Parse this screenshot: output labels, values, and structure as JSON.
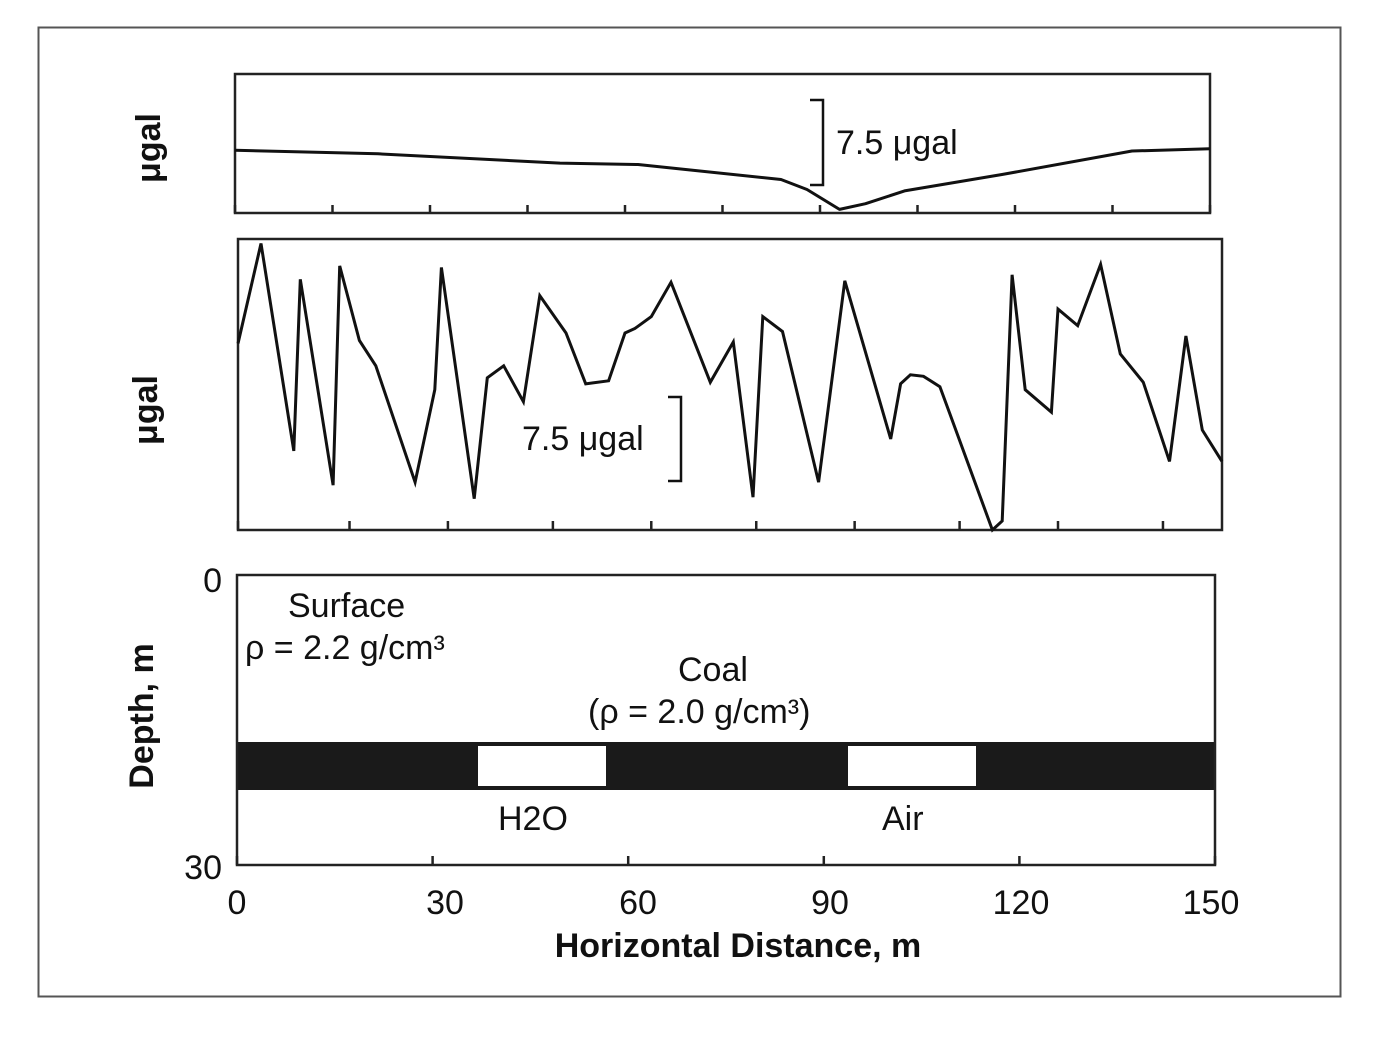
{
  "chart_data": [
    {
      "type": "line",
      "ylabel": "μgal",
      "scale_bar": {
        "label": "7.5 μgal",
        "value": 7.5
      },
      "xlim": [
        0,
        150
      ],
      "x_ticks": [
        0,
        15,
        30,
        45,
        60,
        75,
        90,
        105,
        120,
        135,
        150
      ],
      "series": [
        {
          "x": [
            0,
            22,
            50,
            62,
            84,
            88,
            93,
            97,
            103,
            118,
            138,
            150
          ],
          "y": [
            8.3,
            7.8,
            6.5,
            6.3,
            4.2,
            2.8,
            0.0,
            0.8,
            2.6,
            4.9,
            8.2,
            8.5
          ]
        }
      ],
      "ylim": [
        -0.5,
        19
      ]
    },
    {
      "type": "line",
      "ylabel": "μgal",
      "scale_bar": {
        "label": "7.5 μgal",
        "value": 7.5
      },
      "xlim": [
        0,
        150
      ],
      "x_ticks": [
        0,
        17,
        32,
        48,
        63,
        79,
        94,
        110,
        125,
        141
      ],
      "series": [
        {
          "x": [
            0,
            3.5,
            8.5,
            9.5,
            14.5,
            15.5,
            18.5,
            21,
            27,
            30,
            31,
            36,
            38,
            40.5,
            43.5,
            46,
            50,
            53,
            56.5,
            59,
            60.5,
            63,
            66,
            72,
            75.5,
            78.5,
            80,
            83,
            88.5,
            92.5,
            99.5,
            101,
            102.5,
            104.5,
            107,
            108.5,
            115,
            116.5,
            118,
            120,
            124,
            125,
            128,
            131.5,
            134.5,
            138,
            142,
            144.5,
            147,
            150
          ],
          "y": [
            12.5,
            19.2,
            5.3,
            16.8,
            3.0,
            17.7,
            12.7,
            11.0,
            3.2,
            9.4,
            17.6,
            2.1,
            10.2,
            11.0,
            8.6,
            15.7,
            13.2,
            9.8,
            10.0,
            13.2,
            13.5,
            14.3,
            16.6,
            9.9,
            12.6,
            2.2,
            14.3,
            13.3,
            3.2,
            16.7,
            6.1,
            9.8,
            10.4,
            10.3,
            9.6,
            7.8,
            0.0,
            0.6,
            17.1,
            9.4,
            7.9,
            14.8,
            13.7,
            17.8,
            11.8,
            9.9,
            4.6,
            13.0,
            6.7,
            4.6
          ]
        }
      ],
      "ylim": [
        0,
        19.5
      ]
    },
    {
      "type": "cross-section",
      "xlabel": "Horizontal Distance, m",
      "ylabel": "Depth, m",
      "xlim": [
        0,
        150
      ],
      "ylim": [
        30,
        0
      ],
      "x_ticks": [
        0,
        30,
        60,
        90,
        120,
        150
      ],
      "y_ticks": [
        0,
        30
      ],
      "coal_seam": {
        "depth_top": 17.3,
        "depth_bottom": 22.4
      },
      "voids": [
        {
          "label": "H2O",
          "x_start": 37,
          "x_end": 57
        },
        {
          "label": "Air",
          "x_start": 94,
          "x_end": 114
        }
      ],
      "annotations": {
        "surface": "Surface",
        "surface_density": "ρ = 2.2 g/cm³",
        "coal": "Coal",
        "coal_density": "(ρ = 2.0 g/cm³)"
      }
    }
  ]
}
